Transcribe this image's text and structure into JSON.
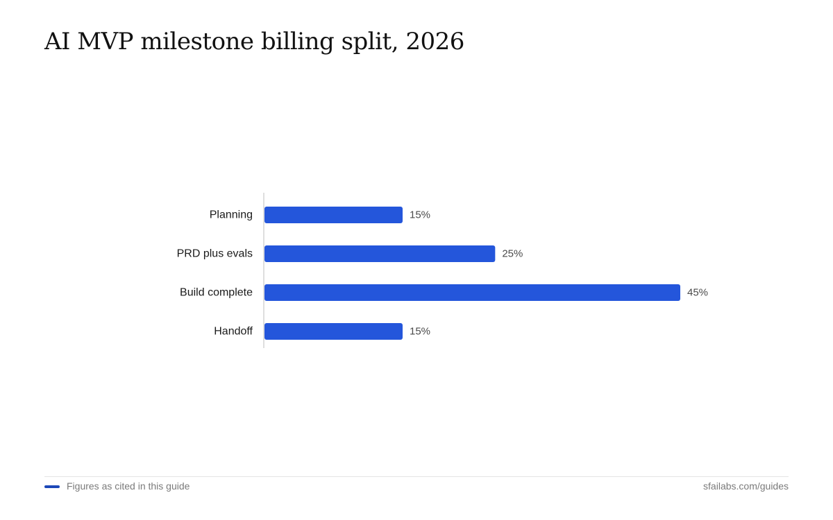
{
  "header": {
    "title": "AI MVP milestone billing split, 2026"
  },
  "chart_data": {
    "type": "bar",
    "orientation": "horizontal",
    "categories": [
      "Planning",
      "PRD plus evals",
      "Build complete",
      "Handoff"
    ],
    "values": [
      15,
      25,
      45,
      15
    ],
    "value_labels": [
      "15%",
      "25%",
      "45%",
      "15%"
    ],
    "unit": "%",
    "xlim": [
      0,
      45
    ],
    "grid": false,
    "bar_color": "#2456db"
  },
  "footer": {
    "note": "Figures as cited in this guide",
    "source": "sfailabs.com/guides",
    "swatch_color": "#1d48b8"
  }
}
